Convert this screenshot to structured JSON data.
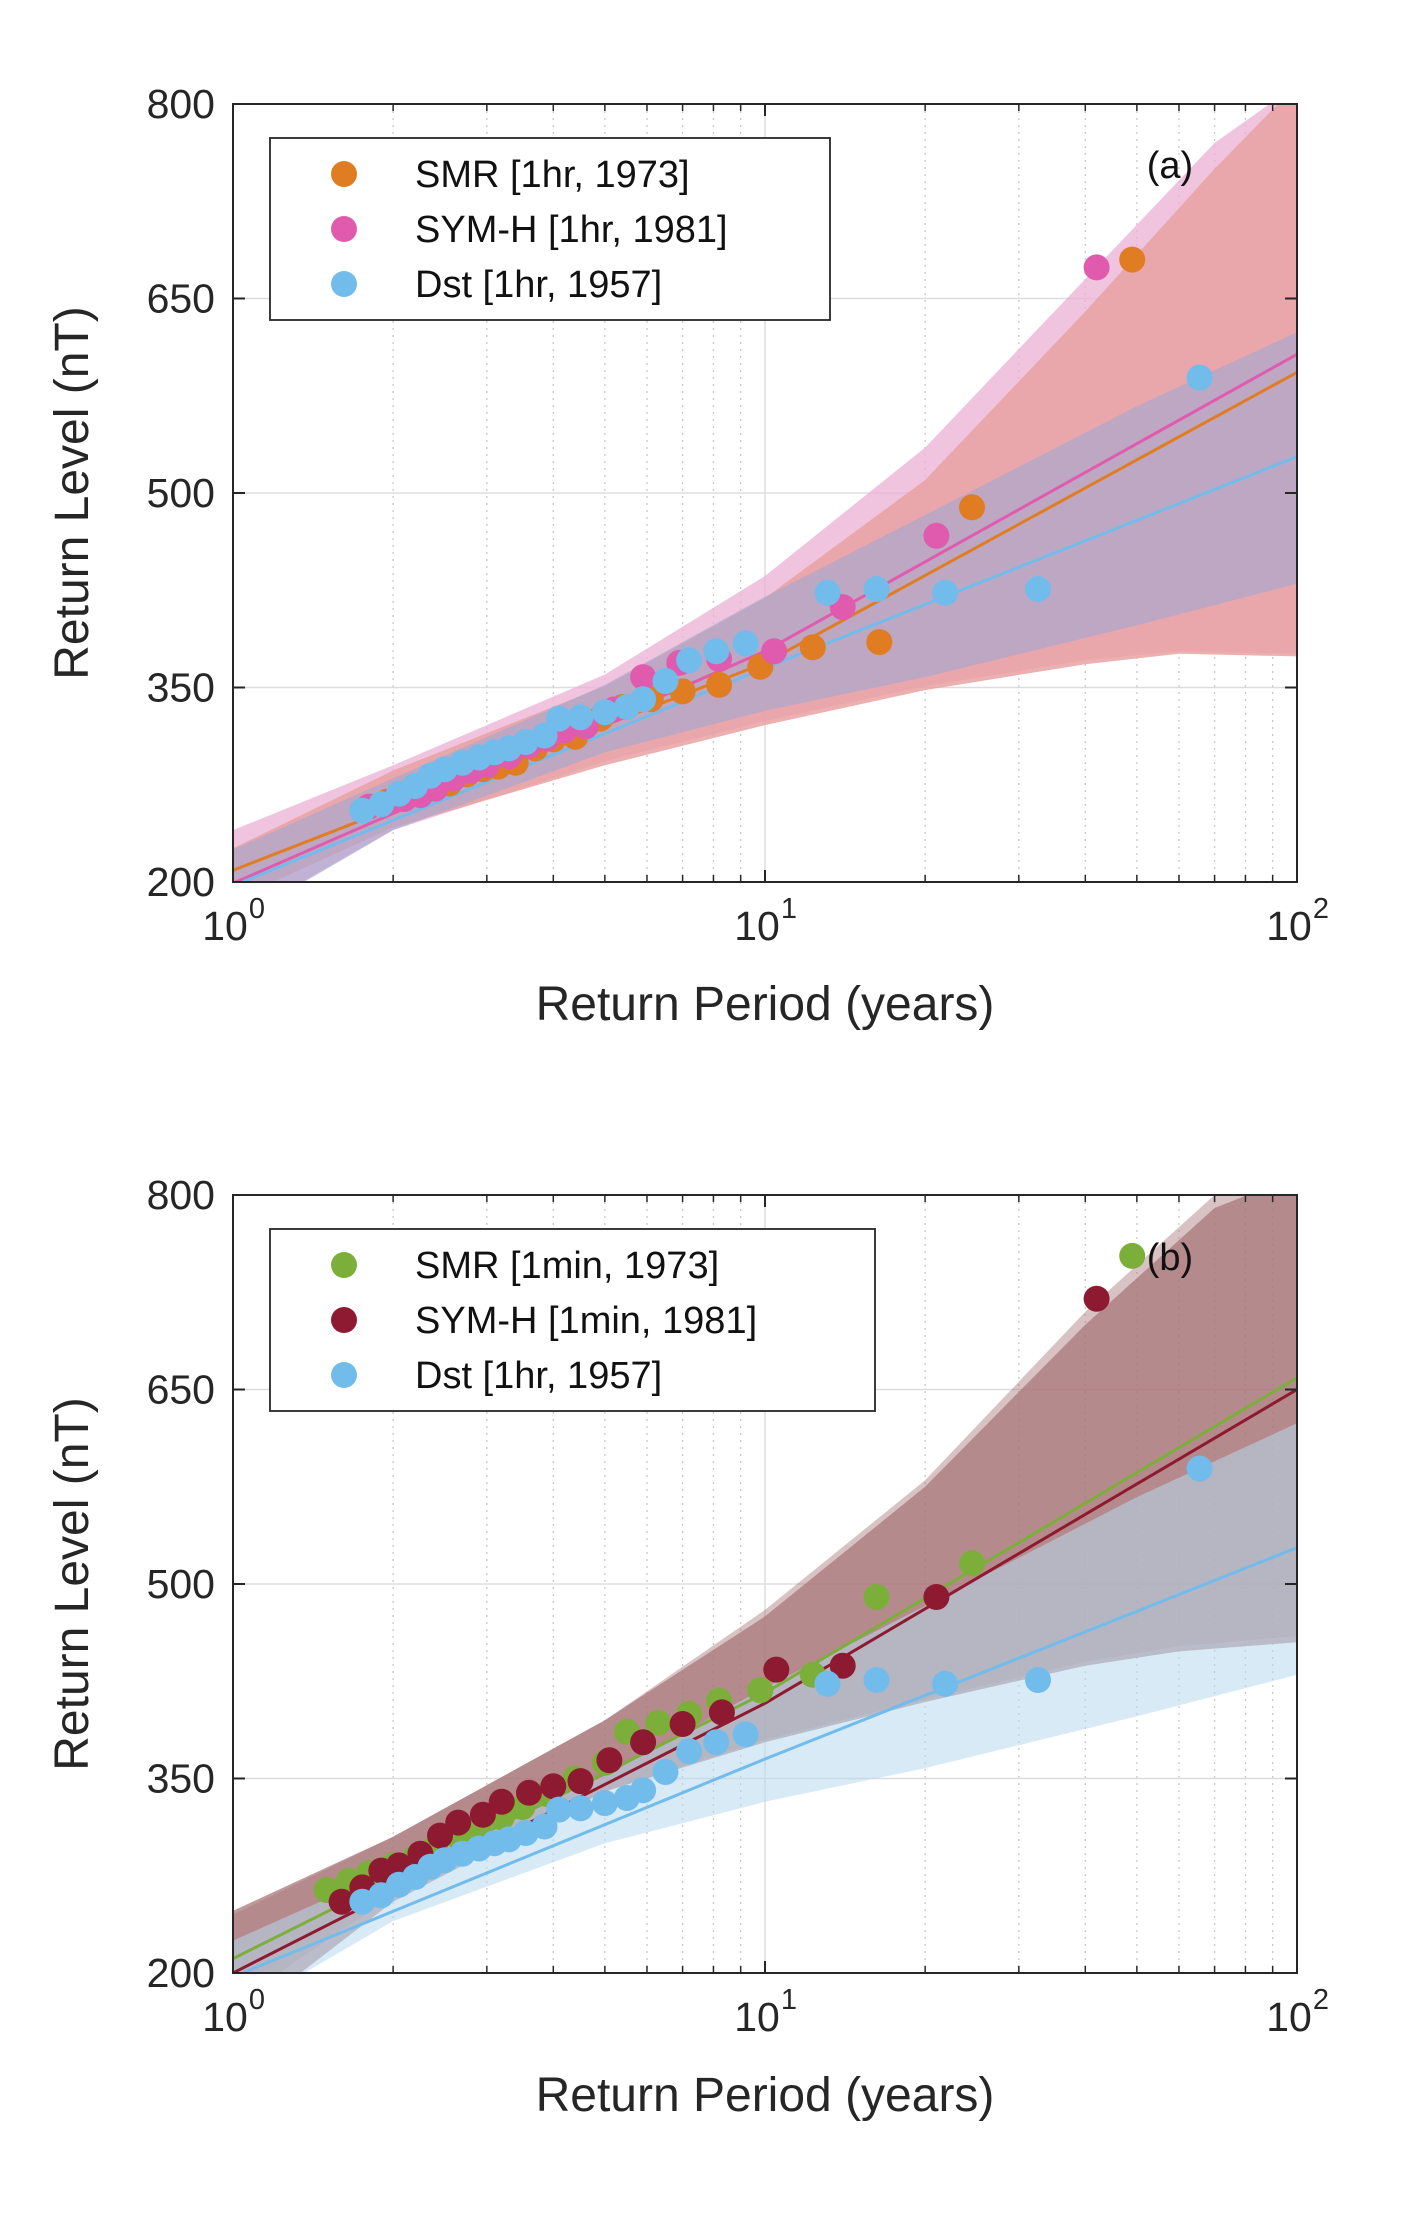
{
  "colors": {
    "smr_1hr": "#E07D23",
    "symh_1hr": "#E05BAE",
    "dst_1hr": "#72BCEC",
    "smr_1min": "#7CAF3A",
    "symh_1min": "#8E1A31",
    "band_smr_1hr": "#E9A2A2",
    "band_symh_1hr": "#EBB0D3",
    "band_dst_1hr": "#A6A8CF",
    "band_symh_1min": "#A97779",
    "band_dst_1min_panel": "#B6D8EF"
  },
  "chart_data": [
    {
      "type": "scatter",
      "panel_label": "(a)",
      "xlabel": "Return Period (years)",
      "ylabel": "Return Level (nT)",
      "xscale": "log",
      "xlim": [
        1,
        100
      ],
      "ylim": [
        200,
        800
      ],
      "x_ticks": [
        {
          "base": "10",
          "exp": "0",
          "value": 1
        },
        {
          "base": "10",
          "exp": "1",
          "value": 10
        },
        {
          "base": "10",
          "exp": "2",
          "value": 100
        }
      ],
      "y_ticks": [
        200,
        350,
        500,
        650,
        800
      ],
      "grid": true,
      "legend_position": "top-left",
      "series": [
        {
          "name": "SMR [1hr, 1973]",
          "color_key": "smr_1hr",
          "x": [
            1.8,
            1.95,
            2.1,
            2.25,
            2.4,
            2.55,
            2.75,
            2.95,
            3.15,
            3.4,
            3.7,
            4.0,
            4.4,
            4.9,
            5.4,
            6.1,
            7.0,
            8.2,
            9.8,
            12.3,
            16.4,
            24.5,
            49
          ],
          "y": [
            258,
            262,
            266,
            270,
            273,
            276,
            283,
            287,
            289,
            292,
            303,
            310,
            312,
            326,
            335,
            341,
            347,
            352,
            366,
            381,
            385,
            489,
            680
          ],
          "fit": [
            {
              "x": 1,
              "y": 209
            },
            {
              "x": 10,
              "y": 369
            },
            {
              "x": 100,
              "y": 593
            }
          ],
          "band": {
            "upper": [
              {
                "x": 1,
                "y": 226
              },
              {
                "x": 2,
                "y": 286
              },
              {
                "x": 5,
                "y": 351
              },
              {
                "x": 10,
                "y": 419
              },
              {
                "x": 20,
                "y": 510
              },
              {
                "x": 40,
                "y": 640
              },
              {
                "x": 70,
                "y": 750
              },
              {
                "x": 100,
                "y": 815
              }
            ],
            "lower": [
              {
                "x": 1,
                "y": 186
              },
              {
                "x": 2,
                "y": 242
              },
              {
                "x": 5,
                "y": 290
              },
              {
                "x": 10,
                "y": 321
              },
              {
                "x": 20,
                "y": 348
              },
              {
                "x": 40,
                "y": 368
              },
              {
                "x": 60,
                "y": 376
              },
              {
                "x": 100,
                "y": 374
              }
            ]
          }
        },
        {
          "name": "SYM-H [1hr, 1981]",
          "color_key": "symh_1hr",
          "x": [
            1.8,
            1.95,
            2.1,
            2.25,
            2.4,
            2.6,
            2.8,
            3.0,
            3.3,
            3.6,
            3.9,
            4.2,
            4.6,
            5.2,
            5.9,
            6.9,
            8.2,
            10.4,
            14.0,
            21.0,
            42.0
          ],
          "y": [
            258,
            261,
            264,
            267,
            272,
            280,
            286,
            290,
            297,
            305,
            311,
            317,
            320,
            333,
            358,
            369,
            372,
            378,
            412,
            467,
            674
          ],
          "fit": [
            {
              "x": 1,
              "y": 199
            },
            {
              "x": 10,
              "y": 378
            },
            {
              "x": 100,
              "y": 607
            }
          ],
          "band": {
            "upper": [
              {
                "x": 1,
                "y": 240
              },
              {
                "x": 2,
                "y": 290
              },
              {
                "x": 5,
                "y": 360
              },
              {
                "x": 10,
                "y": 436
              },
              {
                "x": 20,
                "y": 535
              },
              {
                "x": 40,
                "y": 665
              },
              {
                "x": 70,
                "y": 770
              },
              {
                "x": 100,
                "y": 815
              }
            ],
            "lower": [
              {
                "x": 1,
                "y": 170
              },
              {
                "x": 2,
                "y": 240
              },
              {
                "x": 5,
                "y": 293
              },
              {
                "x": 10,
                "y": 324
              },
              {
                "x": 20,
                "y": 351
              },
              {
                "x": 40,
                "y": 371
              },
              {
                "x": 60,
                "y": 378
              },
              {
                "x": 100,
                "y": 376
              }
            ]
          }
        },
        {
          "name": "Dst [1hr, 1957]",
          "color_key": "dst_1hr",
          "x": [
            1.75,
            1.9,
            2.05,
            2.2,
            2.35,
            2.5,
            2.7,
            2.9,
            3.1,
            3.3,
            3.55,
            3.85,
            4.1,
            4.5,
            5.0,
            5.5,
            5.9,
            6.5,
            7.2,
            8.1,
            9.2,
            13.1,
            16.2,
            21.8,
            32.6,
            65.6
          ],
          "y": [
            255,
            260,
            268,
            274,
            282,
            287,
            292,
            296,
            300,
            303,
            308,
            313,
            326,
            327,
            331,
            335,
            341,
            355,
            371,
            378,
            384,
            423,
            426,
            423,
            426,
            589
          ],
          "fit": [
            {
              "x": 1,
              "y": 197
            },
            {
              "x": 10,
              "y": 365
            },
            {
              "x": 100,
              "y": 528
            }
          ],
          "band": {
            "upper": [
              {
                "x": 1,
                "y": 225
              },
              {
                "x": 2,
                "y": 280
              },
              {
                "x": 5,
                "y": 352
              },
              {
                "x": 10,
                "y": 420
              },
              {
                "x": 20,
                "y": 483
              },
              {
                "x": 50,
                "y": 567
              },
              {
                "x": 100,
                "y": 624
              }
            ],
            "lower": [
              {
                "x": 1,
                "y": 168
              },
              {
                "x": 2,
                "y": 240
              },
              {
                "x": 5,
                "y": 300
              },
              {
                "x": 10,
                "y": 332
              },
              {
                "x": 20,
                "y": 358
              },
              {
                "x": 50,
                "y": 398
              },
              {
                "x": 100,
                "y": 430
              }
            ]
          }
        }
      ]
    },
    {
      "type": "scatter",
      "panel_label": "(b)",
      "xlabel": "Return Period (years)",
      "ylabel": "Return Level (nT)",
      "xscale": "log",
      "xlim": [
        1,
        100
      ],
      "ylim": [
        200,
        800
      ],
      "x_ticks": [
        {
          "base": "10",
          "exp": "0",
          "value": 1
        },
        {
          "base": "10",
          "exp": "1",
          "value": 10
        },
        {
          "base": "10",
          "exp": "2",
          "value": 100
        }
      ],
      "y_ticks": [
        200,
        350,
        500,
        650,
        800
      ],
      "grid": true,
      "legend_position": "top-left",
      "series": [
        {
          "name": "SMR [1min, 1973]",
          "color_key": "smr_1min",
          "x": [
            1.5,
            1.65,
            1.8,
            2.0,
            2.2,
            2.4,
            2.65,
            2.9,
            3.2,
            3.5,
            3.9,
            4.4,
            5.0,
            5.5,
            6.3,
            7.2,
            8.2,
            9.8,
            12.3,
            16.2,
            24.5,
            49
          ],
          "y": [
            264,
            271,
            277,
            283,
            289,
            297,
            305,
            313,
            320,
            328,
            338,
            350,
            362,
            386,
            393,
            400,
            410,
            418,
            430,
            490,
            516,
            753
          ],
          "fit": [
            {
              "x": 1,
              "y": 211
            },
            {
              "x": 10,
              "y": 416
            },
            {
              "x": 100,
              "y": 659
            }
          ],
          "band": {
            "upper": [
              {
                "x": 1,
                "y": 245
              },
              {
                "x": 2,
                "y": 305
              },
              {
                "x": 5,
                "y": 395
              },
              {
                "x": 10,
                "y": 480
              },
              {
                "x": 20,
                "y": 580
              },
              {
                "x": 40,
                "y": 710
              },
              {
                "x": 70,
                "y": 800
              },
              {
                "x": 100,
                "y": 815
              }
            ],
            "lower": [
              {
                "x": 1,
                "y": 176
              },
              {
                "x": 2,
                "y": 260
              },
              {
                "x": 5,
                "y": 340
              },
              {
                "x": 10,
                "y": 380
              },
              {
                "x": 20,
                "y": 411
              },
              {
                "x": 40,
                "y": 440
              },
              {
                "x": 60,
                "y": 452
              },
              {
                "x": 100,
                "y": 460
              }
            ]
          }
        },
        {
          "name": "SYM-H [1min, 1981]",
          "color_key": "symh_1min",
          "x": [
            1.6,
            1.75,
            1.9,
            2.05,
            2.25,
            2.45,
            2.65,
            2.95,
            3.2,
            3.6,
            4.0,
            4.5,
            5.1,
            5.9,
            7.0,
            8.3,
            10.5,
            14.0,
            21.0,
            42.0
          ],
          "y": [
            255,
            266,
            279,
            283,
            292,
            306,
            316,
            322,
            332,
            339,
            344,
            348,
            364,
            378,
            392,
            401,
            434,
            437,
            490,
            720
          ],
          "fit": [
            {
              "x": 1,
              "y": 200
            },
            {
              "x": 10,
              "y": 408
            },
            {
              "x": 100,
              "y": 650
            }
          ],
          "band": {
            "upper": [
              {
                "x": 1,
                "y": 248
              },
              {
                "x": 2,
                "y": 305
              },
              {
                "x": 5,
                "y": 395
              },
              {
                "x": 10,
                "y": 475
              },
              {
                "x": 20,
                "y": 575
              },
              {
                "x": 40,
                "y": 700
              },
              {
                "x": 70,
                "y": 790
              },
              {
                "x": 100,
                "y": 815
              }
            ],
            "lower": [
              {
                "x": 1,
                "y": 160
              },
              {
                "x": 2,
                "y": 255
              },
              {
                "x": 5,
                "y": 340
              },
              {
                "x": 10,
                "y": 378
              },
              {
                "x": 20,
                "y": 409
              },
              {
                "x": 40,
                "y": 437
              },
              {
                "x": 60,
                "y": 448
              },
              {
                "x": 100,
                "y": 455
              }
            ]
          }
        },
        {
          "name": "Dst [1hr, 1957]",
          "color_key": "dst_1hr",
          "x": [
            1.75,
            1.9,
            2.05,
            2.2,
            2.35,
            2.5,
            2.7,
            2.9,
            3.1,
            3.3,
            3.55,
            3.85,
            4.1,
            4.5,
            5.0,
            5.5,
            5.9,
            6.5,
            7.2,
            8.1,
            9.2,
            13.1,
            16.2,
            21.8,
            32.6,
            65.6
          ],
          "y": [
            255,
            260,
            268,
            274,
            282,
            287,
            292,
            296,
            300,
            303,
            308,
            313,
            326,
            327,
            331,
            335,
            341,
            355,
            371,
            378,
            384,
            423,
            426,
            423,
            426,
            589
          ],
          "fit": [
            {
              "x": 1,
              "y": 197
            },
            {
              "x": 10,
              "y": 365
            },
            {
              "x": 100,
              "y": 528
            }
          ],
          "band": {
            "upper": [
              {
                "x": 1,
                "y": 225
              },
              {
                "x": 2,
                "y": 280
              },
              {
                "x": 5,
                "y": 352
              },
              {
                "x": 10,
                "y": 420
              },
              {
                "x": 20,
                "y": 483
              },
              {
                "x": 50,
                "y": 567
              },
              {
                "x": 100,
                "y": 624
              }
            ],
            "lower": [
              {
                "x": 1,
                "y": 168
              },
              {
                "x": 2,
                "y": 240
              },
              {
                "x": 5,
                "y": 300
              },
              {
                "x": 10,
                "y": 332
              },
              {
                "x": 20,
                "y": 358
              },
              {
                "x": 50,
                "y": 398
              },
              {
                "x": 100,
                "y": 430
              }
            ]
          }
        }
      ]
    }
  ]
}
